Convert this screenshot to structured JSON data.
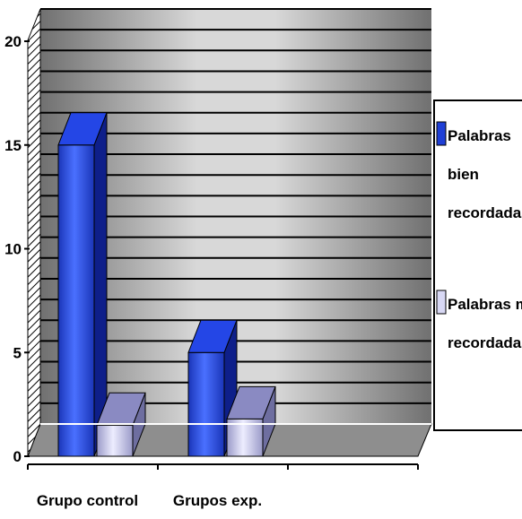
{
  "chart_data": {
    "type": "bar",
    "style": "3d-clustered-column",
    "categories": [
      "Grupo control",
      "Grupos exp."
    ],
    "series": [
      {
        "name": "Palabras bien recordadas",
        "color": "#1f3fd6",
        "values": [
          15,
          5
        ]
      },
      {
        "name": "Palabras mal recordadas",
        "color": "#b9b9e6",
        "values": [
          1.5,
          1.8
        ]
      }
    ],
    "yticks": [
      0,
      5,
      10,
      15,
      20
    ],
    "ylim": [
      0,
      20
    ],
    "grid": true,
    "legend_position": "right",
    "legend_lines": [
      [
        "Palabras",
        "bien",
        "recordadas"
      ],
      [
        "Palabras mal",
        "recordadas"
      ]
    ],
    "colors": {
      "wall_light": "#d4d4d4",
      "wall_dark": "#6a6a6a",
      "floor": "#8e8e8e",
      "gridline": "#000000"
    }
  }
}
